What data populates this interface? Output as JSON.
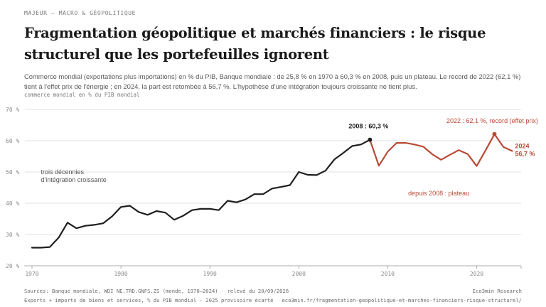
{
  "header": {
    "kicker": "MAJEUR — MACRO & GÉOPOLITIQUE",
    "title": "Fragmentation géopolitique et marchés financiers : le risque structurel que les portefeuilles ignorent",
    "dek": "Commerce mondial (exportations plus importations) en % du PIB, Banque mondiale : de 25,8 % en 1970 à 60,3 % en 2008, puis un plateau. Le record de 2022 (62,1 %) tient à l'effet prix de l'énergie ; en 2024, la part est retombée à 56,7 %. L'hypothèse d'une intégration toujours croissante ne tient plus.",
    "unit_note": "commerce mondial en % du PIB mondial"
  },
  "chart_data": {
    "type": "line",
    "xlim": [
      1970,
      2025
    ],
    "ylim": [
      20,
      70
    ],
    "x_ticks": [
      1970,
      1980,
      1990,
      2000,
      2010,
      2020
    ],
    "y_ticks": [
      20,
      30,
      40,
      50,
      60,
      70
    ],
    "y_tick_suffix": " %",
    "grid": "horizontal",
    "colors": {
      "before": "#1f1f1f",
      "after": "#b84a35",
      "gridline": "#d8d8d8"
    },
    "series": [
      {
        "segment": "1970-2008",
        "x": [
          1970,
          1971,
          1972,
          1973,
          1974,
          1975,
          1976,
          1977,
          1978,
          1979,
          1980,
          1981,
          1982,
          1983,
          1984,
          1985,
          1986,
          1987,
          1988,
          1989,
          1990,
          1991,
          1992,
          1993,
          1994,
          1995,
          1996,
          1997,
          1998,
          1999,
          2000,
          2001,
          2002,
          2003,
          2004,
          2005,
          2006,
          2007,
          2008
        ],
        "values": [
          25.8,
          25.8,
          26.0,
          29.0,
          33.8,
          32.0,
          32.8,
          33.1,
          33.6,
          35.8,
          38.8,
          39.2,
          37.2,
          36.3,
          37.5,
          37.0,
          34.7,
          36.0,
          37.8,
          38.2,
          38.2,
          37.8,
          40.8,
          40.3,
          41.2,
          42.9,
          42.9,
          44.7,
          45.2,
          45.8,
          50.0,
          49.1,
          49.0,
          50.4,
          54.0,
          56.1,
          58.3,
          58.8,
          60.3
        ]
      },
      {
        "segment": "2008-2024",
        "x": [
          2008,
          2009,
          2010,
          2011,
          2012,
          2013,
          2014,
          2015,
          2016,
          2017,
          2018,
          2019,
          2020,
          2021,
          2022,
          2023,
          2024
        ],
        "values": [
          60.3,
          52.0,
          56.5,
          59.3,
          59.3,
          58.8,
          58.1,
          55.7,
          53.9,
          55.5,
          57.0,
          55.7,
          51.9,
          56.9,
          62.1,
          58.0,
          56.7
        ]
      }
    ],
    "annotations": {
      "peak_2008": "2008 : 60,3 %",
      "record_2022": "2022 : 62,1 %, record (effet prix)",
      "end_year": "2024",
      "end_value": "56,7 %",
      "left_note_line1": "trois décennies",
      "left_note_line2": "d'intégration croissante",
      "plateau_note": "depuis 2008 : plateau"
    }
  },
  "footer": {
    "source": "Sources: Banque mondiale, WDI NE.TRD.GNFS.ZS (monde, 1970–2024) · relevé du 20/09/2026",
    "note": "Exports + imports de biens et services, % du PIB mondial · 2025 provisoire écarté",
    "brand": "Eco3min Research",
    "url": "eco3min.fr/fragmentation-geopolitique-et-marches-financiers-risque-structurel/"
  }
}
